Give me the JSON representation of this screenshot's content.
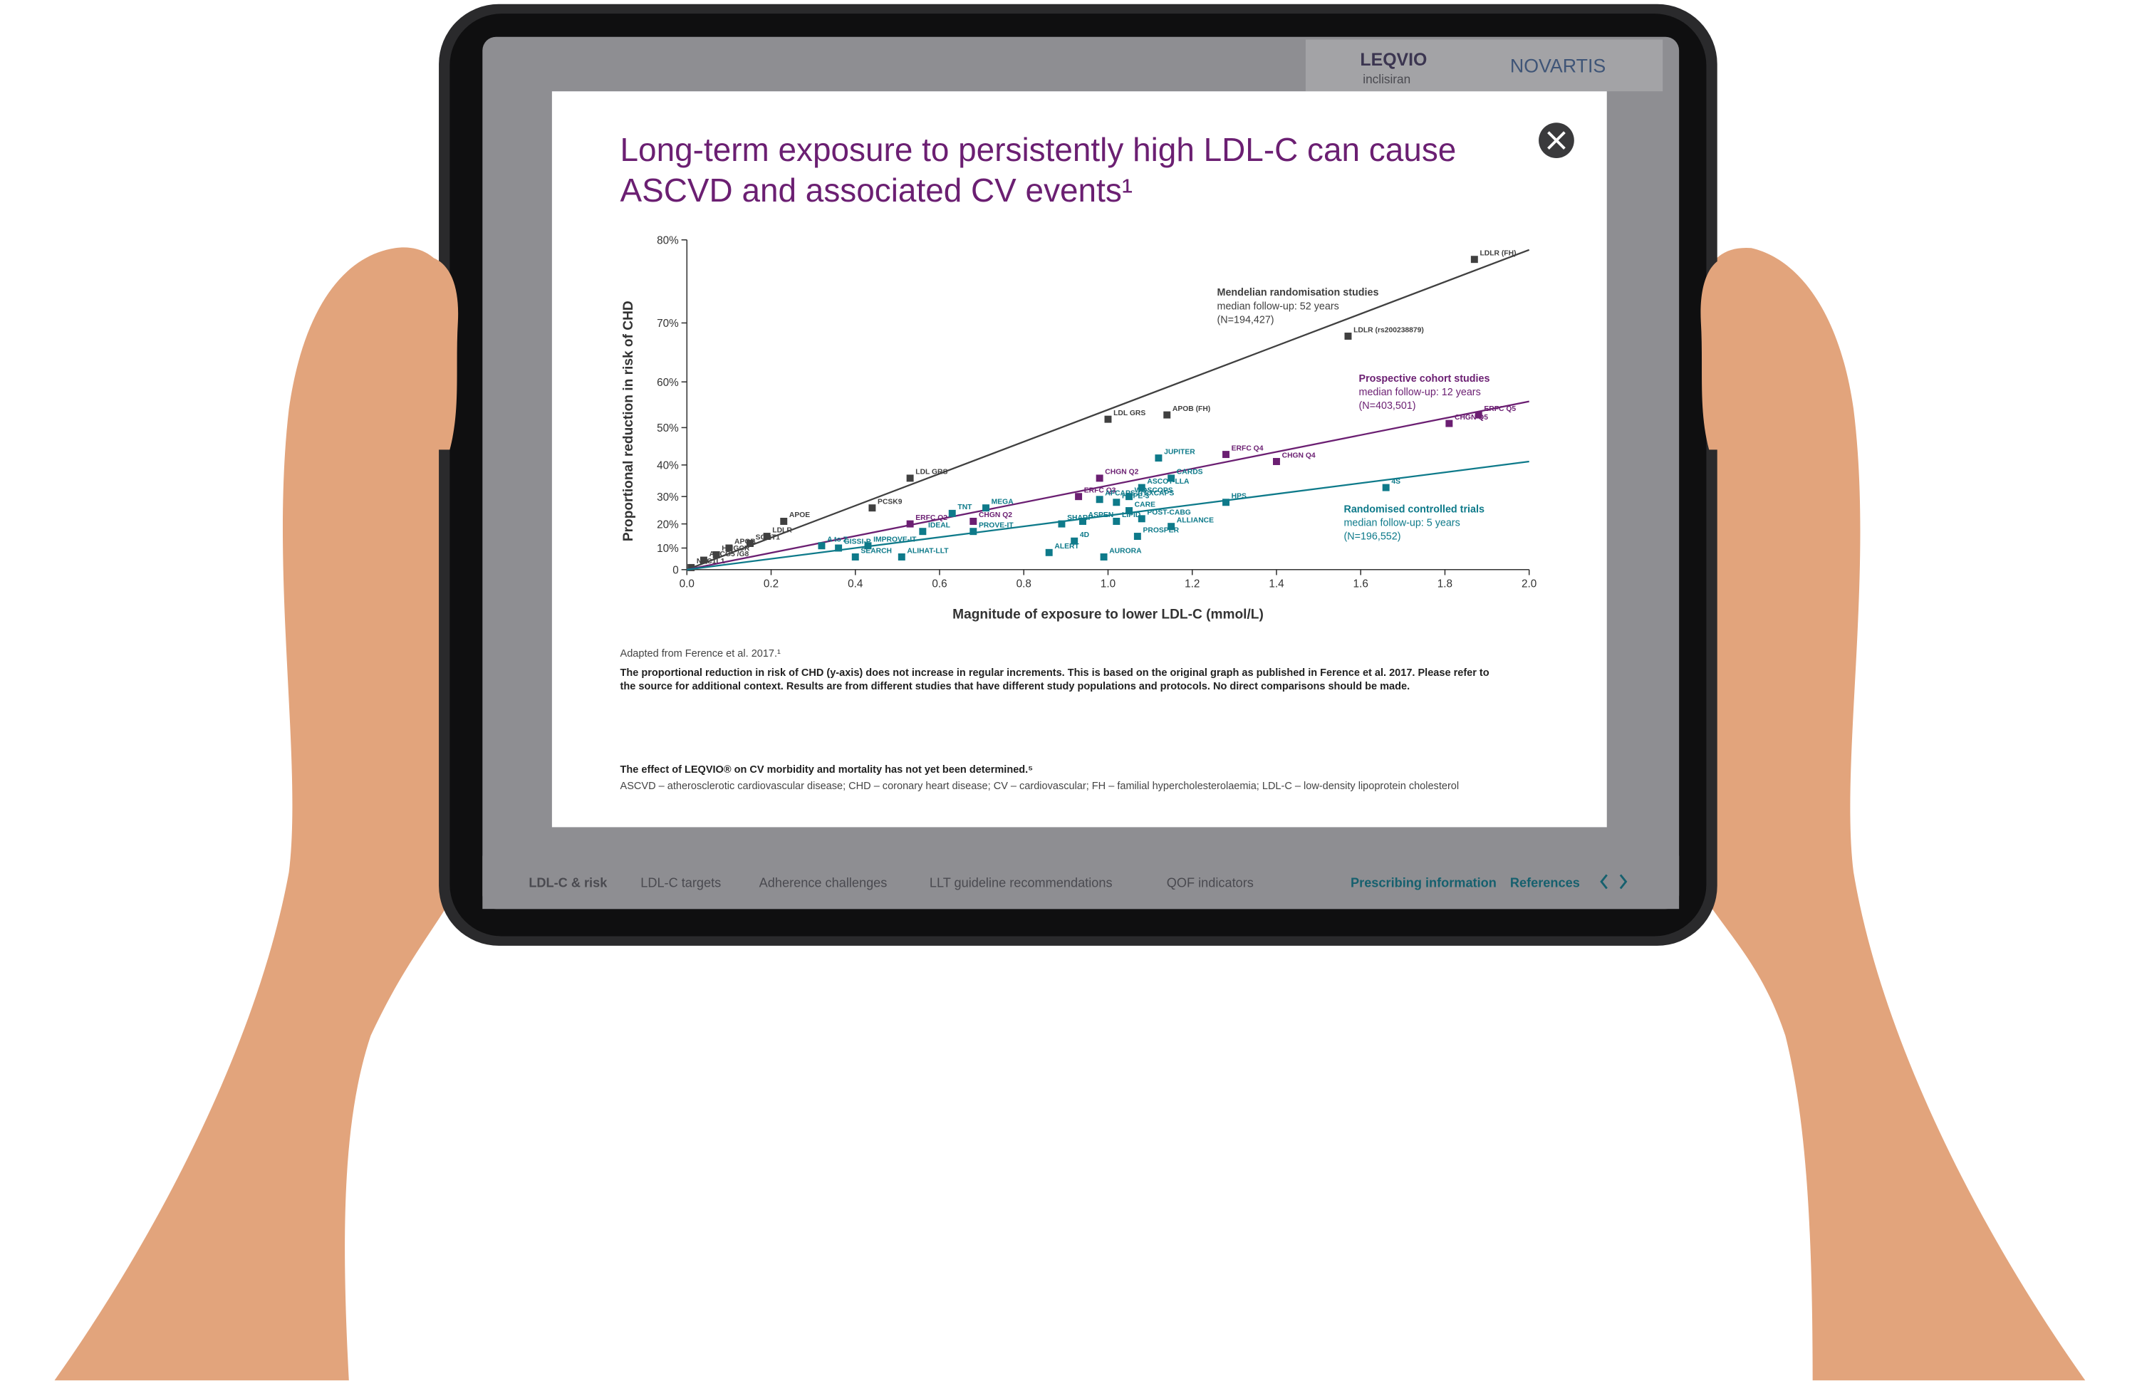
{
  "page": {
    "brand": {
      "product": "LEQVIO",
      "generic": "inclisiran",
      "company": "NOVARTIS"
    },
    "nav": [
      "LDL-C & risk",
      "LDL-C targets",
      "Adherence challenges",
      "LLT guideline recommendations",
      "QOF indicators"
    ],
    "links": [
      "Prescribing information",
      "References"
    ]
  },
  "modal": {
    "source": "Adapted from Ference et al. 2017.¹",
    "disclaimer": [
      "The proportional reduction in risk of CHD (y-axis) does not increase in regular increments. This is based on the original graph as published in Ference et al. 2017. Please refer to",
      "the source for additional context. Results are from different studies that have different study populations and protocols. No direct comparisons should be made."
    ],
    "effect_note": "The effect of LEQVIO® on CV morbidity and mortality has not yet been determined.⁵",
    "abbreviations": "ASCVD – atherosclerotic cardiovascular disease; CHD – coronary heart disease; CV – cardiovascular; FH – familial hypercholesterolaemia; LDL-C – low-density lipoprotein cholesterol"
  },
  "chart_data": {
    "type": "scatter",
    "title": [
      "Long-term exposure to persistently high LDL-C can cause",
      "ASCVD and associated CV events¹"
    ],
    "x_label": "Magnitude of exposure to lower LDL-C (mmol/L)",
    "y_label": "Proportional reduction in risk of CHD",
    "yscale": "log",
    "xlim": [
      0,
      2
    ],
    "ylim": [
      0,
      80
    ],
    "xticks": [
      {
        "value": 0,
        "label": "0.0"
      },
      0.2,
      0.4,
      0.6,
      0.8,
      {
        "value": 1,
        "label": "1.0"
      },
      1.2,
      1.4,
      1.6,
      1.8,
      {
        "value": 2,
        "label": "2.0"
      }
    ],
    "yticks": [
      0,
      {
        "value": 10,
        "label": "10%"
      },
      {
        "value": 20,
        "label": "20%"
      },
      {
        "value": 30,
        "label": "30%"
      },
      {
        "value": 40,
        "label": "40%"
      },
      {
        "value": 50,
        "label": "50%"
      },
      {
        "value": 60,
        "label": "60%"
      },
      {
        "value": 70,
        "label": "70%"
      },
      {
        "value": 80,
        "label": "80%"
      }
    ],
    "series": [
      {
        "name": "Mendelian randomisation studies",
        "note": [
          "median follow-up: 52 years",
          "(N=194,427)"
        ],
        "color": "#404040",
        "labels": [
          "LDLR (FH)",
          "LDLR (rs200238879)",
          "APOB (FH)",
          "LDL GRS",
          "LDL GRS",
          "PCSK9",
          "APOE",
          "LDLR",
          "SORT1",
          "APOB",
          "HMGCR",
          "ABCG5 /G8",
          "NPC1L1"
        ],
        "x": [
          1.87,
          1.57,
          1.14,
          1.0,
          0.53,
          0.44,
          0.23,
          0.19,
          0.15,
          0.1,
          0.07,
          0.04,
          0.01
        ],
        "values": [
          78,
          68,
          53,
          52,
          36,
          26,
          21,
          15,
          12,
          10,
          7,
          4.5,
          1
        ],
        "trend": {
          "x": [
            0,
            2
          ],
          "values": [
            0,
            79
          ]
        }
      },
      {
        "name": "Prospective cohort studies",
        "note": [
          "median follow-up: 12 years",
          "(N=403,501)"
        ],
        "color": "#6b1f72",
        "labels": [
          "ERFC Q5",
          "CHGN Q5",
          "CHGN Q4",
          "ERFC Q4",
          "CHGN Q2",
          "ERFC Q3",
          "CHGN Q2",
          "ERFC Q2"
        ],
        "x": [
          1.88,
          1.81,
          1.4,
          1.28,
          0.98,
          0.93,
          0.68,
          0.53
        ],
        "values": [
          53,
          51,
          41,
          43,
          36,
          30,
          21,
          20
        ],
        "trend": {
          "x": [
            0,
            2
          ],
          "values": [
            0,
            56
          ]
        }
      },
      {
        "name": "Randomised controlled trials",
        "note": [
          "median follow-up: 5 years",
          "(N=196,552)"
        ],
        "color": "#0e7a8a",
        "labels": [
          "4S",
          "HPS",
          "JUPITER",
          "CARDS",
          "ASCOT-LLA",
          "WOSCOPS",
          "HOPE-3",
          "CARE",
          "POST-CABG",
          "LIPID",
          "ALLIANCE",
          "PROSPER",
          "AURORA",
          "AFCAPS /TEXCAPS",
          "SHARP",
          "ASPEN",
          "4D",
          "ALERT",
          "MEGA",
          "TNT",
          "IDEAL",
          "PROVE-IT",
          "ALIHAT-LLT",
          "SEARCH",
          "IMPROVE-IT",
          "A to Z",
          "GISSI-P"
        ],
        "x": [
          1.66,
          1.28,
          1.12,
          1.15,
          1.08,
          1.05,
          1.02,
          1.05,
          1.08,
          1.02,
          1.15,
          1.07,
          0.99,
          0.98,
          0.89,
          0.94,
          0.92,
          0.86,
          0.71,
          0.63,
          0.56,
          0.68,
          0.51,
          0.4,
          0.43,
          0.32,
          0.36
        ],
        "values": [
          33,
          28,
          42,
          36,
          33,
          30,
          28,
          25,
          22,
          21,
          19,
          15,
          6,
          29,
          20,
          21,
          13,
          8,
          26,
          24,
          17,
          17,
          6,
          6,
          11,
          11,
          10
        ],
        "trend": {
          "x": [
            0,
            2
          ],
          "values": [
            0,
            41
          ]
        }
      }
    ]
  }
}
